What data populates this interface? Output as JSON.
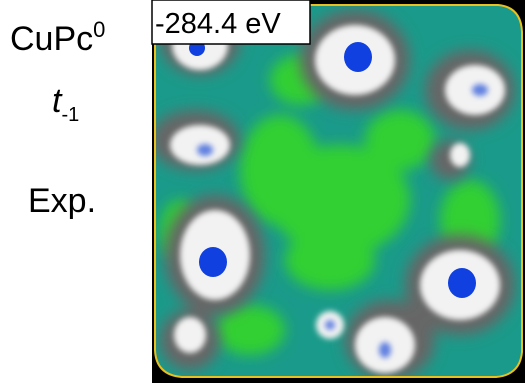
{
  "molecule": {
    "name": "CuPc",
    "superscript": "0"
  },
  "orbital": {
    "symbol": "t",
    "subscript": "-1"
  },
  "kind": "Exp.",
  "map": {
    "energy_label": "-284.4 eV"
  }
}
